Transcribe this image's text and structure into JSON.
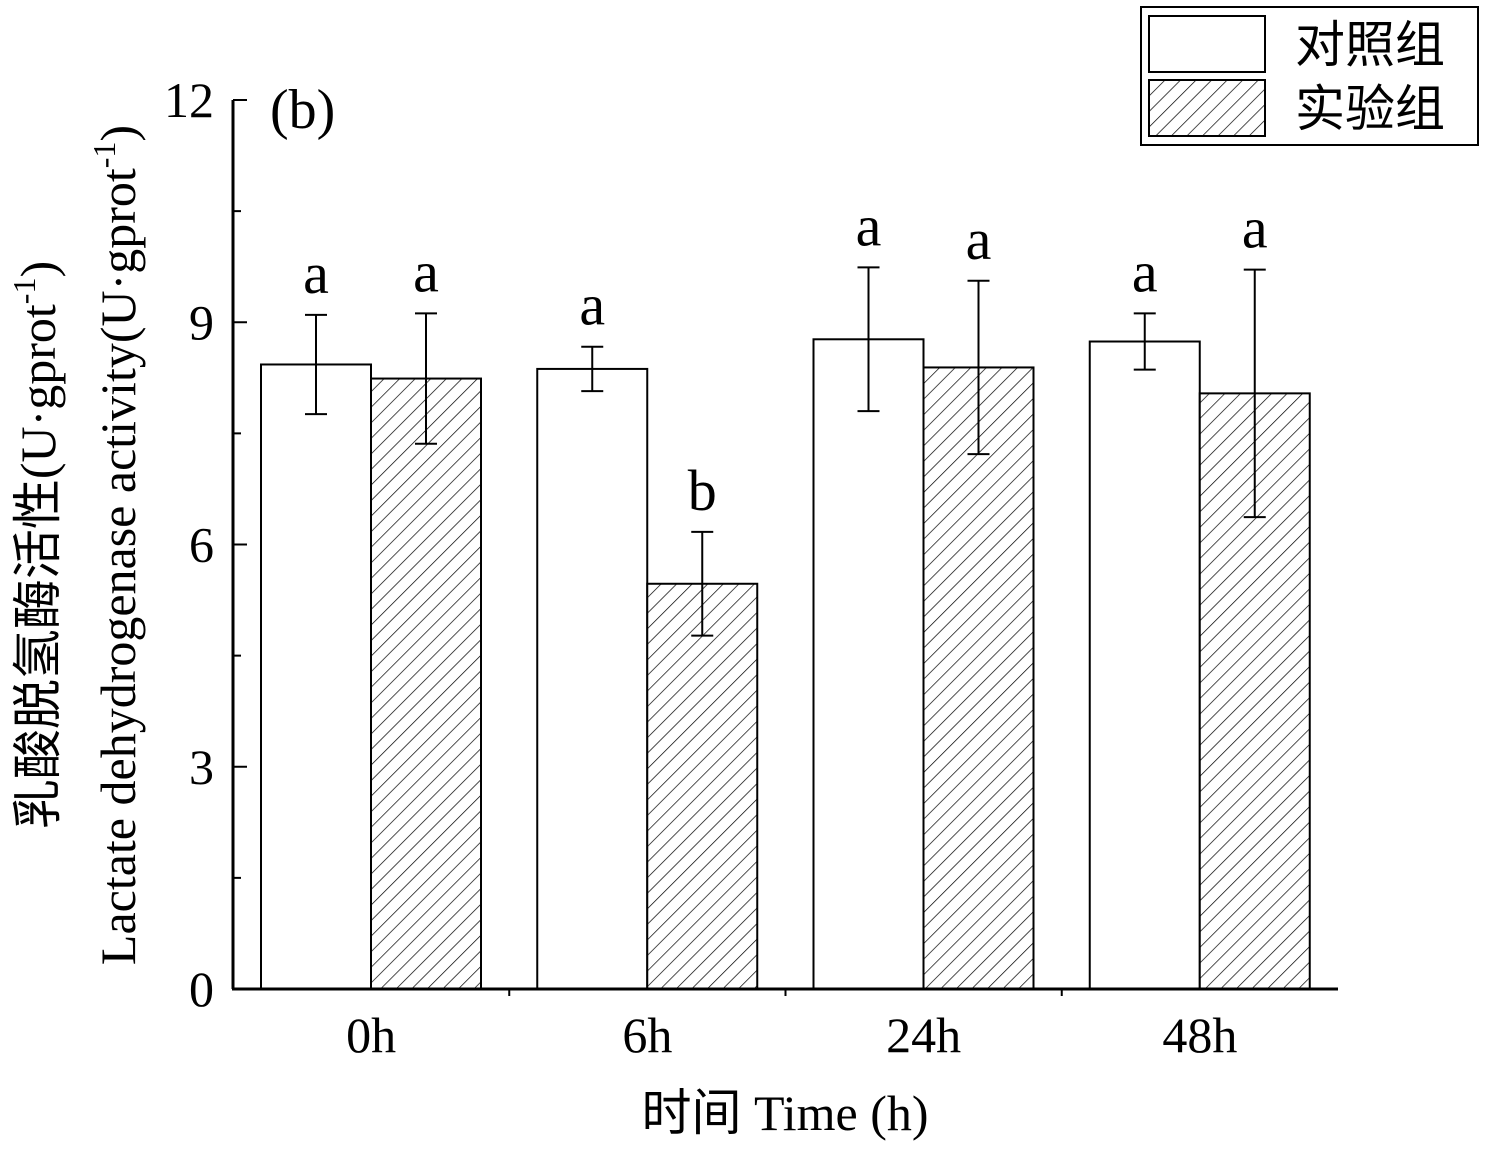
{
  "chart_data": {
    "type": "bar",
    "panel_label": "(b)",
    "categories": [
      "0h",
      "6h",
      "24h",
      "48h"
    ],
    "series": [
      {
        "name": "对照组",
        "fill": "white",
        "values": [
          8.43,
          8.37,
          8.77,
          8.74
        ],
        "errors": [
          0.67,
          0.3,
          0.97,
          0.38
        ],
        "letters": [
          "a",
          "a",
          "a",
          "a"
        ]
      },
      {
        "name": "实验组",
        "fill": "hatched",
        "values": [
          8.24,
          5.47,
          8.39,
          8.04
        ],
        "errors": [
          0.88,
          0.7,
          1.17,
          1.67
        ],
        "letters": [
          "a",
          "b",
          "a",
          "a"
        ]
      }
    ],
    "ylim": [
      0,
      12
    ],
    "yticks": [
      "0",
      "3",
      "6",
      "9",
      "12"
    ],
    "xlabel": "时间 Time (h)",
    "ylabel_cn": "乳酸脱氢酶活性",
    "ylabel_en": "Lactate dehydrogenase activity",
    "unit_base": "(U·gprot",
    "unit_exp": "-1",
    "unit_close": ")",
    "legend_position": "top-right",
    "grid": false
  }
}
